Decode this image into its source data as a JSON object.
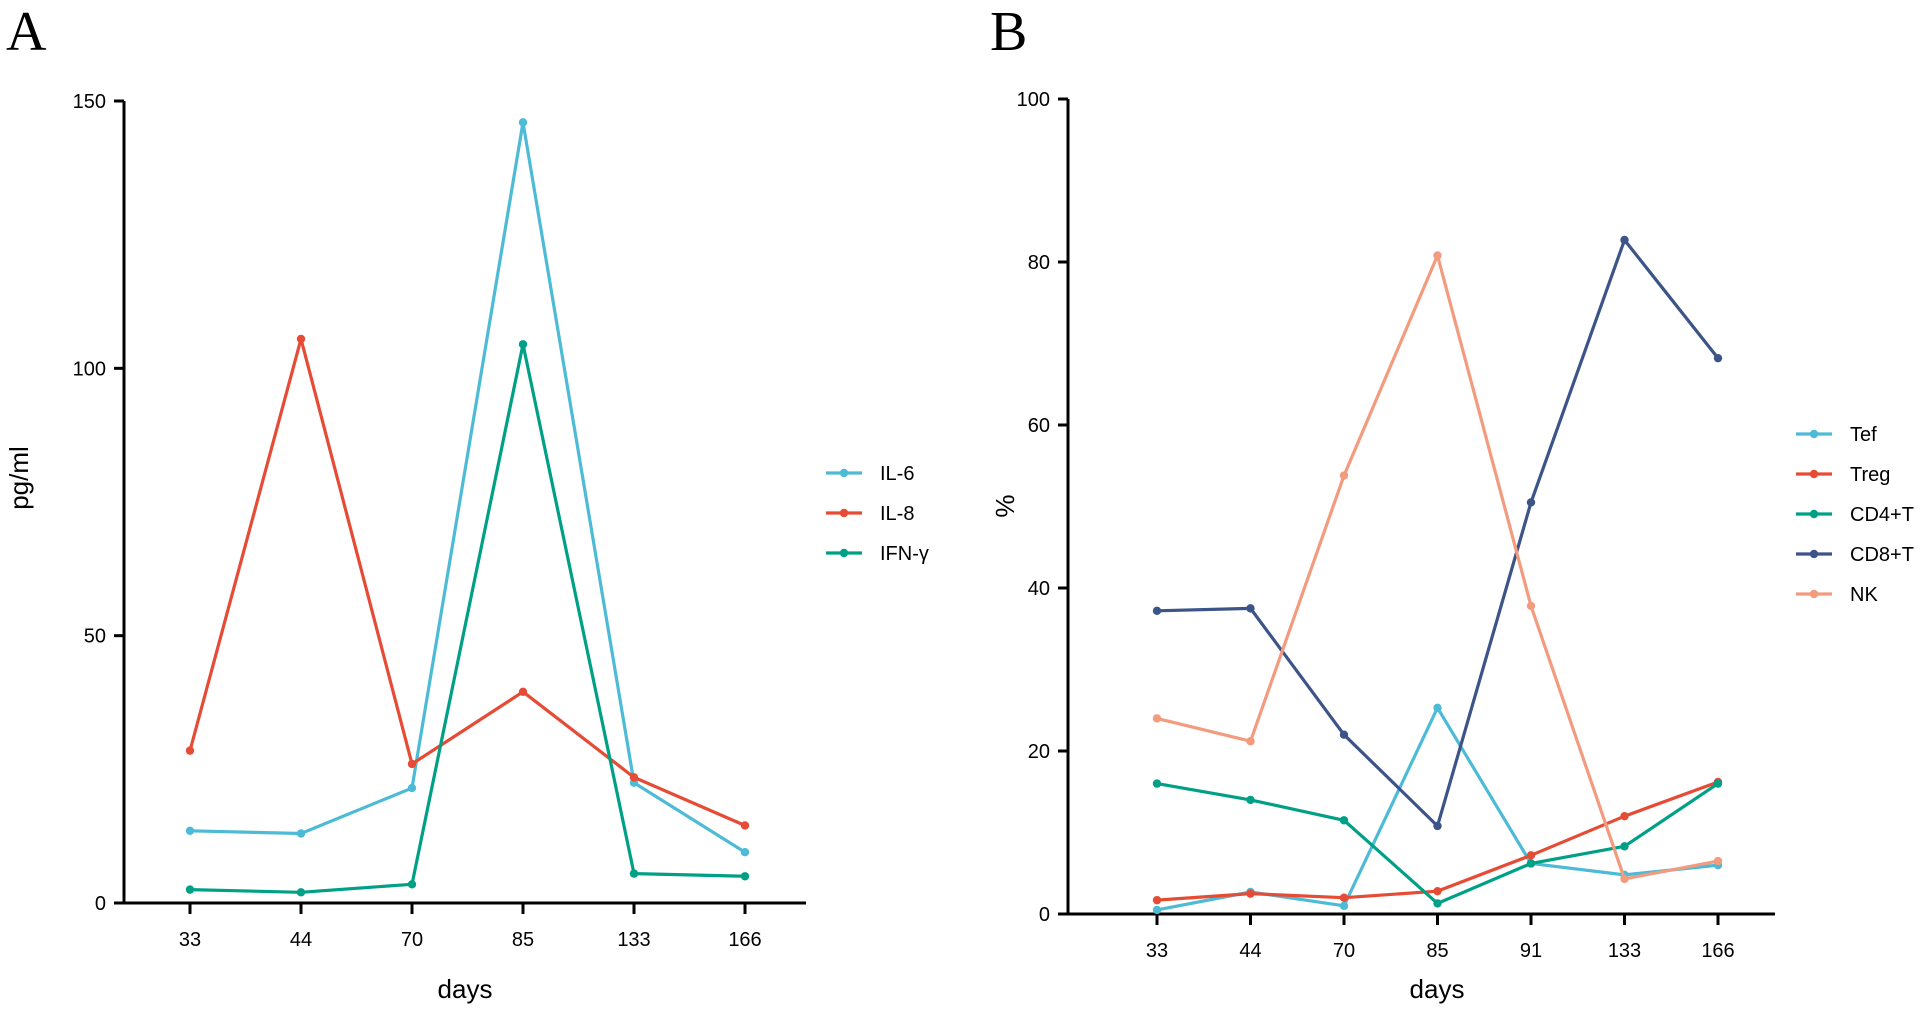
{
  "chart_data": [
    {
      "type": "line",
      "panel_label": "A",
      "xlabel": "days",
      "ylabel": "pg/ml",
      "categories": [
        "33",
        "44",
        "70",
        "85",
        "133",
        "166"
      ],
      "ylim": [
        0,
        150
      ],
      "yticks": [
        0,
        50,
        100,
        150
      ],
      "grid": false,
      "legend_position": "right",
      "series": [
        {
          "name": "IL-6",
          "color": "#4dbbd5",
          "values": [
            13.5,
            13,
            21.5,
            146,
            22.5,
            9.5
          ]
        },
        {
          "name": "IL-8",
          "color": "#e64b35",
          "values": [
            28.5,
            105.5,
            26,
            39.5,
            23.5,
            14.5
          ]
        },
        {
          "name": "IFN-γ",
          "color": "#00a087",
          "values": [
            2.5,
            2,
            3.5,
            104.5,
            5.5,
            5
          ]
        }
      ]
    },
    {
      "type": "line",
      "panel_label": "B",
      "xlabel": "days",
      "ylabel": "%",
      "categories": [
        "33",
        "44",
        "70",
        "85",
        "91",
        "133",
        "166"
      ],
      "ylim": [
        0,
        100
      ],
      "yticks": [
        0,
        20,
        40,
        60,
        80,
        100
      ],
      "grid": false,
      "legend_position": "right",
      "series": [
        {
          "name": "Tef",
          "color": "#4dbbd5",
          "values": [
            0.5,
            2.7,
            1,
            25.3,
            6.2,
            4.8,
            6
          ]
        },
        {
          "name": "Treg",
          "color": "#e64b35",
          "values": [
            1.7,
            2.5,
            2,
            2.8,
            7.2,
            12,
            16.2
          ]
        },
        {
          "name": "CD4+T",
          "color": "#00a087",
          "values": [
            16,
            14,
            11.5,
            1.3,
            6.2,
            8.3,
            16
          ]
        },
        {
          "name": "CD8+T",
          "color": "#3c5488",
          "values": [
            37.2,
            37.5,
            22,
            10.8,
            50.5,
            82.7,
            68.2
          ]
        },
        {
          "name": "NK",
          "color": "#f39b7f",
          "values": [
            24,
            21.2,
            53.8,
            80.8,
            37.8,
            4.3,
            6.5
          ]
        }
      ]
    }
  ]
}
